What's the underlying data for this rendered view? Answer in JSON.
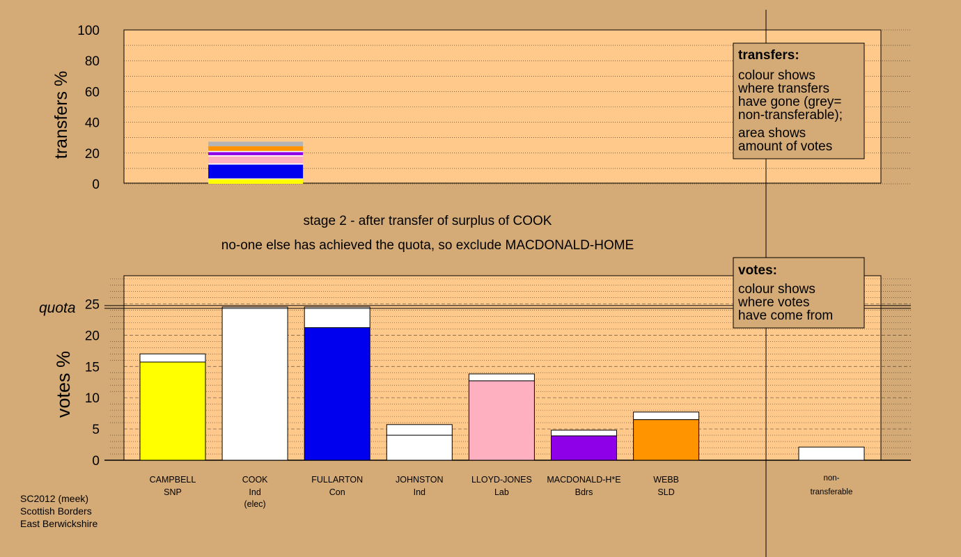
{
  "colors": {
    "background": "#d4aa76",
    "plot_fill": "#ffc98c",
    "yellow": "#ffff00",
    "white": "#ffffff",
    "blue": "#0000ee",
    "pink": "#ffb0c0",
    "purple": "#8e00e8",
    "orange": "#ff9400",
    "grey": "#b4b4b4"
  },
  "stage": {
    "line1": "stage 2 - after transfer of surplus of COOK",
    "line2": "no-one else has achieved the quota, so exclude MACDONALD-HOME"
  },
  "transfers_legend": {
    "title": "transfers:",
    "lines": [
      "colour shows",
      "where transfers",
      "have gone (grey=",
      "non-transferable);"
    ],
    "lines2": [
      "area shows",
      "amount of votes"
    ]
  },
  "votes_legend": {
    "title": "votes:",
    "lines": [
      "colour shows",
      "where votes",
      "have come from"
    ]
  },
  "footer": {
    "lines": [
      "SC2012 (meek)",
      "Scottish Borders",
      "East Berwickshire"
    ]
  },
  "chart_data": [
    {
      "type": "bar",
      "name": "transfers",
      "ylabel": "transfers %",
      "ylim": [
        0,
        100
      ],
      "yticks": [
        0,
        20,
        40,
        60,
        80,
        100
      ],
      "grid": true,
      "bar_index": 1,
      "segments": [
        {
          "color": "yellow",
          "value": 3.0
        },
        {
          "color": "white",
          "value": 0.5
        },
        {
          "color": "blue",
          "value": 9.0
        },
        {
          "color": "white",
          "value": 0.8
        },
        {
          "color": "pink",
          "value": 4.5
        },
        {
          "color": "white",
          "value": 0.8
        },
        {
          "color": "purple",
          "value": 2.0
        },
        {
          "color": "white",
          "value": 0.8
        },
        {
          "color": "orange",
          "value": 3.0
        },
        {
          "color": "grey",
          "value": 3.0
        }
      ]
    },
    {
      "type": "bar",
      "name": "votes",
      "ylabel": "votes %",
      "ylim": [
        0,
        29.5
      ],
      "yticks": [
        0,
        5,
        10,
        15,
        20,
        25
      ],
      "quota": 24.5,
      "quota_label": "quota",
      "grid": true,
      "candidates": [
        {
          "name": "CAMPBELL",
          "party": "SNP",
          "note": "",
          "first": 15.7,
          "first_color": "yellow",
          "transfer": 1.3
        },
        {
          "name": "COOK",
          "party": "Ind",
          "note": "(elec)",
          "first": 24.5,
          "first_color": "white",
          "transfer": 0.0
        },
        {
          "name": "FULLARTON",
          "party": "Con",
          "note": "",
          "first": 21.2,
          "first_color": "blue",
          "transfer": 3.3
        },
        {
          "name": "JOHNSTON",
          "party": "Ind",
          "note": "",
          "first": 4.0,
          "first_color": "white",
          "transfer": 1.7
        },
        {
          "name": "LLOYD-JONES",
          "party": "Lab",
          "note": "",
          "first": 12.7,
          "first_color": "pink",
          "transfer": 1.1
        },
        {
          "name": "MACDONALD-H*E",
          "party": "Bdrs",
          "note": "",
          "first": 3.9,
          "first_color": "purple",
          "transfer": 0.9
        },
        {
          "name": "WEBB",
          "party": "SLD",
          "note": "",
          "first": 6.5,
          "first_color": "orange",
          "transfer": 1.2
        }
      ],
      "nontransferable": {
        "label1": "non-",
        "label2": "transferable",
        "value": 2.1,
        "color": "white"
      }
    }
  ]
}
